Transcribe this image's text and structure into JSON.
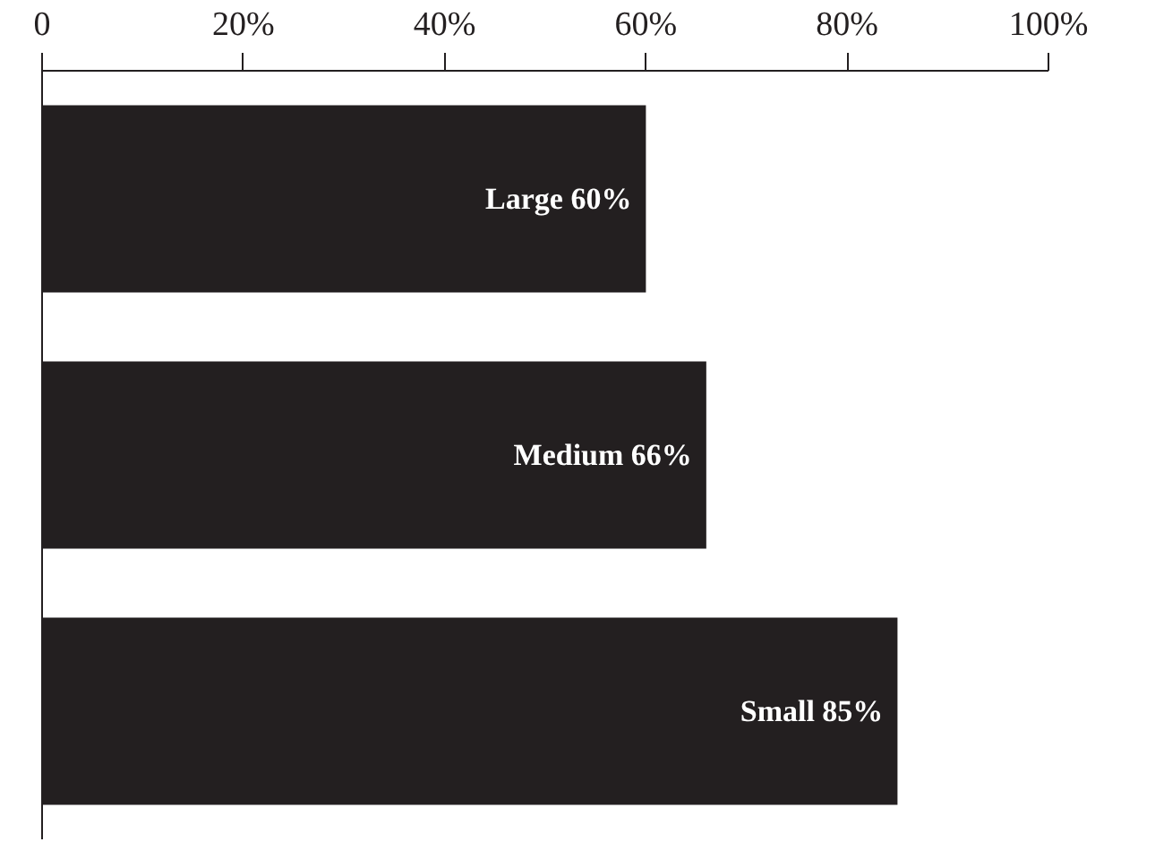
{
  "chart_data": {
    "type": "bar",
    "orientation": "horizontal",
    "categories": [
      "Large",
      "Medium",
      "Small"
    ],
    "values": [
      60,
      66,
      85
    ],
    "color": "#231f20",
    "value_labels": [
      "60%",
      "66%",
      "85%"
    ],
    "xlim": [
      0,
      100
    ],
    "xticks": [
      0,
      {
        "value": 20,
        "label": "20%"
      },
      {
        "value": 40,
        "label": "40%"
      },
      {
        "value": 60,
        "label": "60%"
      },
      {
        "value": 80,
        "label": "80%"
      },
      {
        "value": 100,
        "label": "100%"
      }
    ],
    "tick_labels": "x",
    "grid": false
  }
}
